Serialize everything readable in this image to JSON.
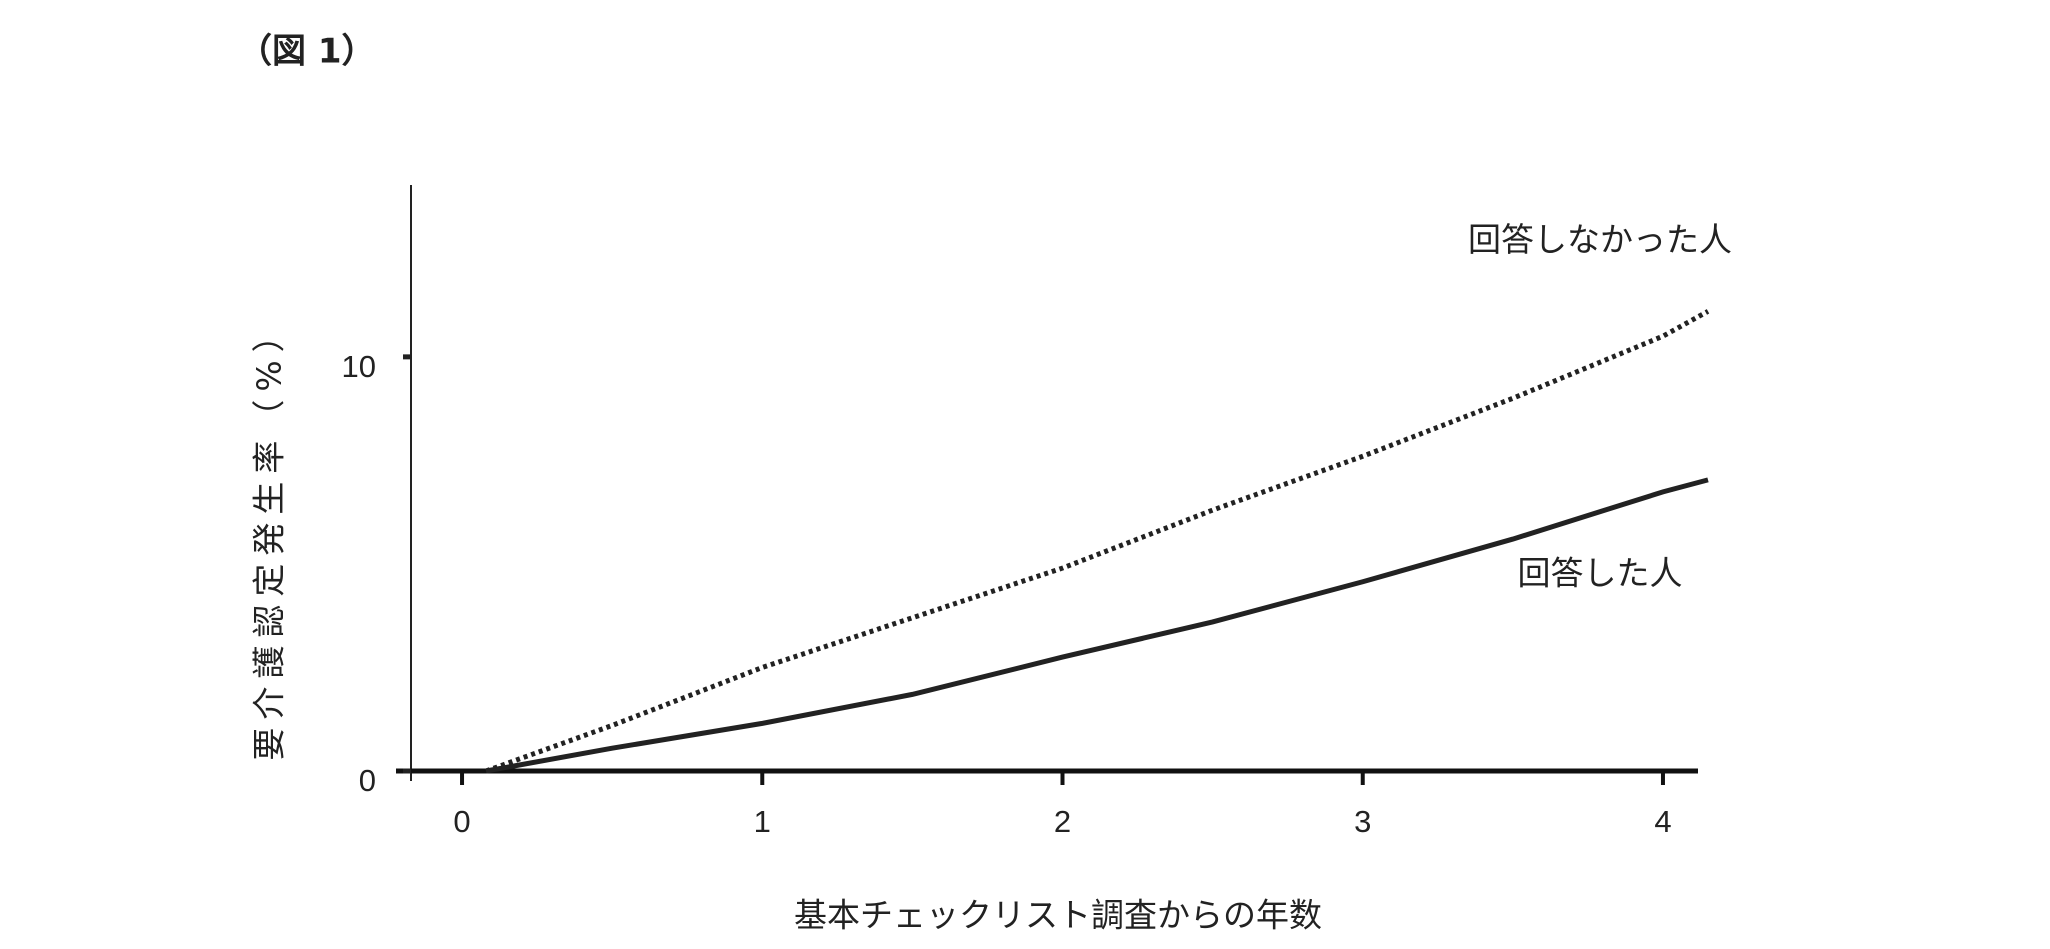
{
  "figure_label": "（図 1）",
  "chart_data": {
    "type": "line",
    "x_label": "基本チェックリスト調査からの年数",
    "y_label": "要介護認定発生率（%）",
    "xlim": [
      -0.17,
      4.15
    ],
    "xticks": [
      0,
      1,
      2,
      3,
      4
    ],
    "ylim": [
      0,
      14.15
    ],
    "yticks": [
      0,
      10
    ],
    "series": [
      {
        "name": "回答しなかった人",
        "color": "#222222",
        "line_style": "dotted",
        "x": [
          0.08,
          0.5,
          1,
          1.5,
          2,
          2.5,
          3,
          3.5,
          4,
          4.15
        ],
        "values": [
          0,
          1.1,
          2.5,
          3.7,
          4.9,
          6.3,
          7.6,
          9.0,
          10.5,
          11.1
        ]
      },
      {
        "name": "回答した人",
        "color": "#222222",
        "line_style": "solid",
        "x": [
          0.08,
          0.5,
          1,
          1.5,
          2,
          2.5,
          3,
          3.5,
          4,
          4.15
        ],
        "values": [
          0,
          0.55,
          1.15,
          1.85,
          2.75,
          3.6,
          4.57,
          5.6,
          6.74,
          7.03
        ]
      }
    ]
  }
}
